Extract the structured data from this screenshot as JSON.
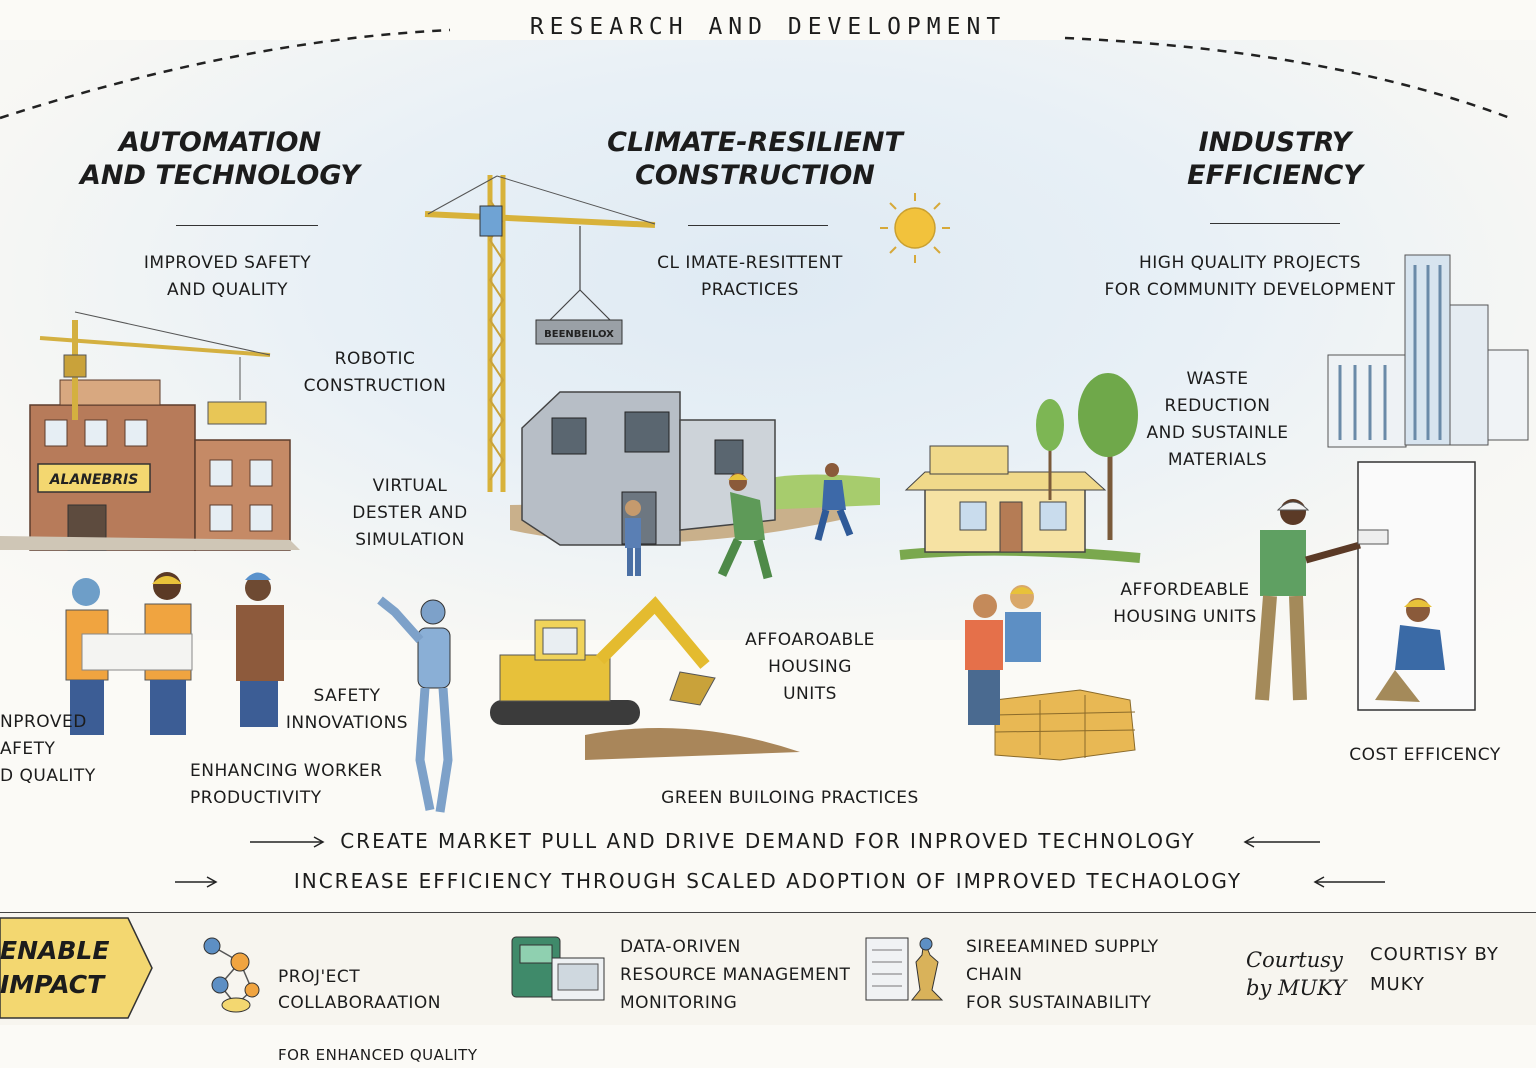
{
  "header": {
    "title": "RESEARCH AND DEVELOPMENT"
  },
  "sections": [
    {
      "title": "AUTOMATION\nAND TECHNOLOGY"
    },
    {
      "title": "CLIMATE-RESILIENT\nCONSTRUCTION"
    },
    {
      "title": "INDUSTRY\nEFFICIENCY"
    }
  ],
  "labels": {
    "improved_safety_quality": "IMPROVED SAFETY\nAND QUALITY",
    "robotic_construction": "ROBOTIC\nCONSTRUCTION",
    "virtual_design": "VIRTUAL\nDESTER AND\nSIMULATION",
    "improved_safety_left": "NPROVED\nAFETY\nD QUALITY",
    "safety_innovations": "SAFETY\nINNOVATIONS",
    "enhancing_worker": "ENHANCING WORKER\nPRODUCTIVITY",
    "climate_practices": "CL IMATE-RESITTENT\nPRACTICES",
    "affordable_housing_center": "AFFOAROABLE\nHOUSING\nUNITS",
    "green_building": "GREEN BUILOING  PRACTICES",
    "high_quality_projects": "HIGH QUALITY PROJECTS\nFOR COMMUNITY DEVELOPMENT",
    "waste_reduction": "WASTE\nREDUCTION\nAND SUSTAINLE\nMATERIALS",
    "affordable_housing_right": "AFFORDEABLE\nHOUSING UNITS",
    "cost_efficiency": "COST EFFICENCY"
  },
  "signs": {
    "building_sign": "ALANEBRIS",
    "crane_block": "BEENBEILOX"
  },
  "flows": [
    {
      "text": "CREATE MARKET PULL AND DRIVE DEMAND FOR INPROVED TECHNOLOGY"
    },
    {
      "text": "INCREASE EFFICIENCY THROUGH SCALED ADOPTION OF IMPROVED TECHAOLOGY"
    }
  ],
  "impact": {
    "badge": "ENABLE\nIMPACT",
    "items": [
      {
        "line1": "PROJ'ECT\nCOLLABORAATION",
        "line2": "FOR ENHANCED QUALITY",
        "icon": "network-icon"
      },
      {
        "line1": "DATA-ORIVEN\nRESOURCE MANAGEMENT\nMONITORING",
        "line2": "",
        "icon": "data-devices-icon"
      },
      {
        "line1": "SIREEAMINED SUPPLY\nCHAIN\nFOR SUSTAINABILITY",
        "line2": "",
        "icon": "supply-chain-icon"
      }
    ],
    "signature": "Courtusy\nby MUKY",
    "credit": "COURTISY BY\nMUKY"
  },
  "colors": {
    "badge_yellow": "#f3d770",
    "sky_blue": "#dfeaf3",
    "crane_yellow": "#e9c23d",
    "worker_blue": "#5a7fb4"
  }
}
